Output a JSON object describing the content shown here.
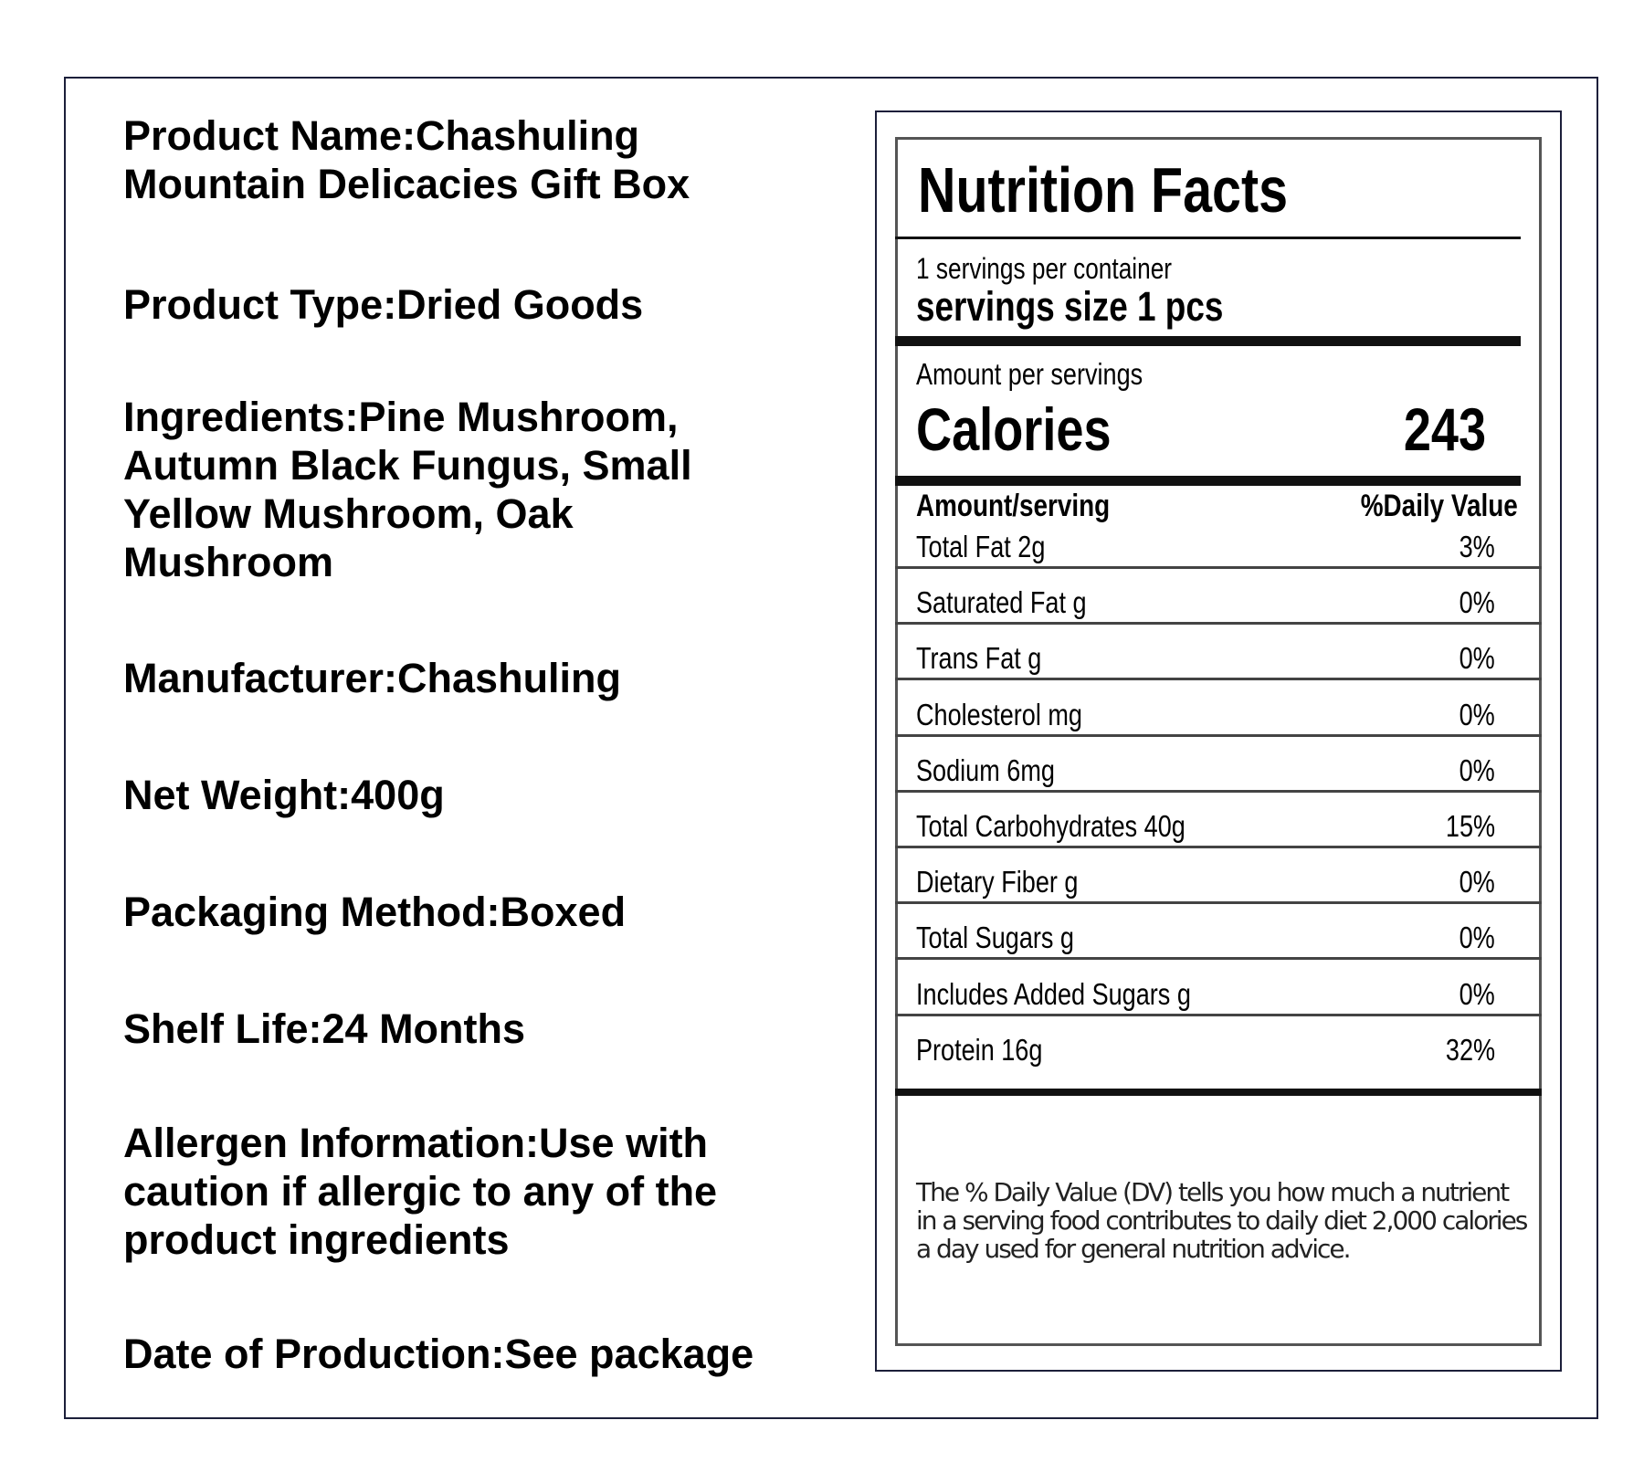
{
  "product_info": [
    {
      "text": "Product Name:Chashuling Mountain Delicacies Gift Box"
    },
    {
      "text": "Product Type:Dried Goods"
    },
    {
      "text": "Ingredients:Pine Mushroom, Autumn Black Fungus, Small Yellow Mushroom, Oak Mushroom"
    },
    {
      "text": "Manufacturer:Chashuling"
    },
    {
      "text": "Net Weight:400g"
    },
    {
      "text": "Packaging Method:Boxed"
    },
    {
      "text": "Shelf Life:24 Months"
    },
    {
      "text": "Allergen Information:Use with caution if allergic to any of the product ingredients"
    },
    {
      "text": "Date of Production:See package"
    }
  ],
  "nutrition": {
    "title": "Nutrition Facts",
    "servings_per_container": "1  servings per container",
    "serving_size": "servings size 1 pcs",
    "amount_per": "Amount per servings",
    "calories_label": "Calories",
    "calories_value": "243",
    "col_amount": "Amount/serving",
    "col_dv": "%Daily Value",
    "rows": [
      {
        "name": "Total Fat 2g",
        "dv": "3%"
      },
      {
        "name": "Saturated Fat g",
        "dv": "0%"
      },
      {
        "name": "Trans Fat g",
        "dv": "0%"
      },
      {
        "name": "Cholesterol mg",
        "dv": "0%"
      },
      {
        "name": "Sodium 6mg",
        "dv": "0%"
      },
      {
        "name": "Total Carbohydrates 40g",
        "dv": "15%"
      },
      {
        "name": "Dietary Fiber g",
        "dv": "0%"
      },
      {
        "name": "Total Sugars g",
        "dv": "0%"
      },
      {
        "name": "Includes Added Sugars g",
        "dv": "0%"
      },
      {
        "name": "Protein 16g",
        "dv": "32%"
      }
    ],
    "footnote": "The % Daily Value (DV) tells you how much a nutrient in a serving food contributes to daily diet 2,000 calories a day used for general nutrition advice."
  }
}
